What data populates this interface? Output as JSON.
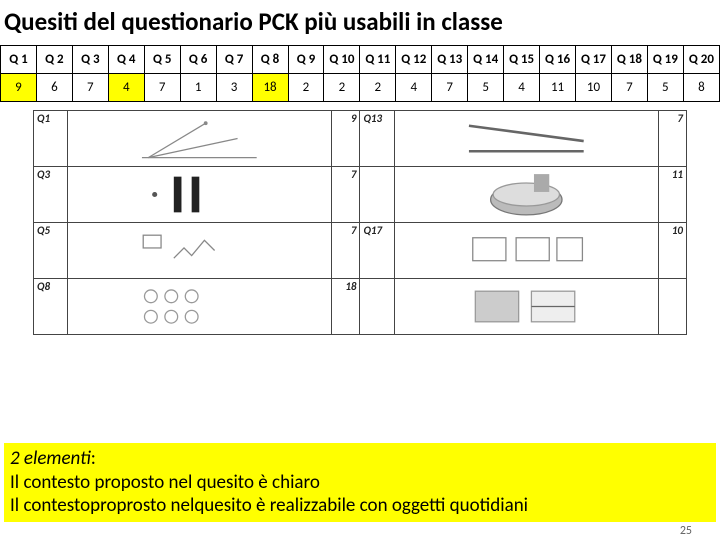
{
  "title": "Quesiti del questionario PCK più usabili in classe",
  "headers": [
    "Q 1",
    "Q 2",
    "Q 3",
    "Q 4",
    "Q 5",
    "Q 6",
    "Q 7",
    "Q 8",
    "Q 9",
    "Q 10",
    "Q 11",
    "Q 12",
    "Q 13",
    "Q 14",
    "Q 15",
    "Q 16",
    "Q 17",
    "Q 18",
    "Q 19",
    "Q 20"
  ],
  "values": [
    "9",
    "6",
    "7",
    "4",
    "7",
    "1",
    "3",
    "18",
    "2",
    "2",
    "2",
    "4",
    "7",
    "5",
    "4",
    "11",
    "10",
    "7",
    "5",
    "8"
  ],
  "highlight_cols": [
    0,
    3,
    7
  ],
  "thumb_rows": [
    {
      "left_q": "Q1",
      "left_n": "9",
      "right_q": "Q13",
      "right_n": "7"
    },
    {
      "left_q": "Q3",
      "left_n": "7",
      "right_q": "",
      "right_n": "11"
    },
    {
      "left_q": "Q5",
      "left_n": "7",
      "right_q": "Q17",
      "right_n": "10"
    },
    {
      "left_q": "Q8",
      "left_n": "18",
      "right_q": "",
      "right_n": ""
    }
  ],
  "footer_line1_em": "2 elementi",
  "footer_line1_rest": ":",
  "footer_line2": "Il contesto proposto nel quesito è chiaro",
  "footer_line3": "Il contestoproprosto nelquesito  è realizzabile con oggetti quotidiani",
  "page_number": "25",
  "colors": {
    "highlight": "#ffff00",
    "border": "#000000",
    "text": "#000000"
  }
}
